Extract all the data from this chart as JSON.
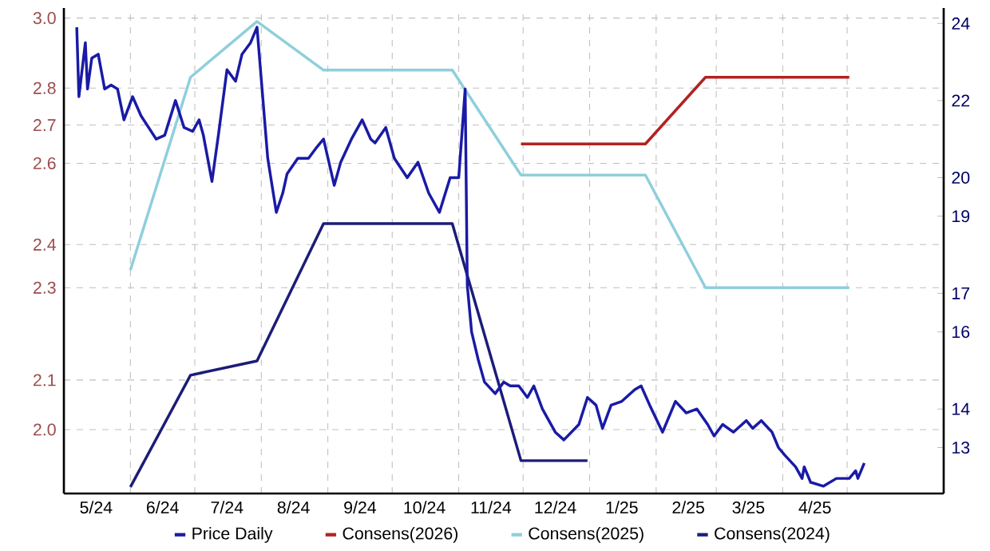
{
  "chart_data": {
    "type": "line",
    "legend": "bottom",
    "grid": true,
    "log": "y",
    "xlim": [
      "2024-05-01",
      "2025-06-15"
    ],
    "xticks": [
      {
        "value": "2024-05-16",
        "label": "5/24"
      },
      {
        "value": "2024-06-16",
        "label": "6/24"
      },
      {
        "value": "2024-07-16",
        "label": "7/24"
      },
      {
        "value": "2024-08-16",
        "label": "8/24"
      },
      {
        "value": "2024-09-16",
        "label": "9/24"
      },
      {
        "value": "2024-10-16",
        "label": "10/24"
      },
      {
        "value": "2024-11-16",
        "label": "11/24"
      },
      {
        "value": "2024-12-16",
        "label": "12/24"
      },
      {
        "value": "2025-01-16",
        "label": "1/25"
      },
      {
        "value": "2025-02-16",
        "label": "2/25"
      },
      {
        "value": "2025-03-16",
        "label": "3/25"
      },
      {
        "value": "2025-04-16",
        "label": "4/25"
      },
      {
        "value": "2024-06-01",
        "label": null
      },
      {
        "value": "2024-07-01",
        "label": null
      },
      {
        "value": "2024-08-01",
        "label": null
      },
      {
        "value": "2024-09-01",
        "label": null
      },
      {
        "value": "2024-10-01",
        "label": null
      },
      {
        "value": "2024-11-01",
        "label": null
      },
      {
        "value": "2024-12-01",
        "label": null
      },
      {
        "value": "2025-01-01",
        "label": null
      },
      {
        "value": "2025-02-01",
        "label": null
      },
      {
        "value": "2025-03-01",
        "label": null
      },
      {
        "value": "2025-04-01",
        "label": null
      },
      {
        "value": "2025-05-01",
        "label": null
      }
    ],
    "ylim": [
      1.878,
      3.03
    ],
    "yticks": [
      {
        "value": 2.0,
        "label": "2.0"
      },
      2.1,
      2.3,
      2.4,
      2.6,
      2.7,
      2.8,
      {
        "value": 3.0,
        "label": "3.0"
      }
    ],
    "y2lim": [
      11.81,
      24.4
    ],
    "y2ticks": [
      13,
      14,
      16,
      17,
      19,
      20,
      22,
      24
    ],
    "series": [
      {
        "name": "Price Daily",
        "color": "#1a1aa6",
        "axis": "y2",
        "x": [
          "2024-05-07",
          "2024-05-08",
          "2024-05-11",
          "2024-05-12",
          "2024-05-14",
          "2024-05-17",
          "2024-05-20",
          "2024-05-23",
          "2024-05-26",
          "2024-05-29",
          "2024-06-02",
          "2024-06-06",
          "2024-06-13",
          "2024-06-17",
          "2024-06-22",
          "2024-06-26",
          "2024-06-30",
          "2024-07-03",
          "2024-07-05",
          "2024-07-09",
          "2024-07-12",
          "2024-07-16",
          "2024-07-20",
          "2024-07-23",
          "2024-07-27",
          "2024-07-30",
          "2024-08-04",
          "2024-08-08",
          "2024-08-11",
          "2024-08-13",
          "2024-08-18",
          "2024-08-23",
          "2024-08-27",
          "2024-08-30",
          "2024-09-04",
          "2024-09-07",
          "2024-09-12",
          "2024-09-17",
          "2024-09-21",
          "2024-09-23",
          "2024-09-28",
          "2024-10-02",
          "2024-10-08",
          "2024-10-13",
          "2024-10-18",
          "2024-10-23",
          "2024-10-28",
          "2024-11-01",
          "2024-11-04",
          "2024-11-05",
          "2024-11-07",
          "2024-11-10",
          "2024-11-13",
          "2024-11-18",
          "2024-11-22",
          "2024-11-25",
          "2024-11-29",
          "2024-12-03",
          "2024-12-06",
          "2024-12-10",
          "2024-12-16",
          "2024-12-20",
          "2024-12-27",
          "2024-12-31",
          "2025-01-04",
          "2025-01-07",
          "2025-01-11",
          "2025-01-16",
          "2025-01-22",
          "2025-01-25",
          "2025-01-29",
          "2025-02-04",
          "2025-02-10",
          "2025-02-15",
          "2025-02-20",
          "2025-02-25",
          "2025-02-28",
          "2025-03-04",
          "2025-03-09",
          "2025-03-15",
          "2025-03-18",
          "2025-03-22",
          "2025-03-27",
          "2025-03-30",
          "2025-04-02",
          "2025-04-07",
          "2025-04-10",
          "2025-04-11",
          "2025-04-14",
          "2025-04-20",
          "2025-04-26",
          "2025-05-02",
          "2025-05-05",
          "2025-05-06",
          "2025-05-09"
        ],
        "values": [
          23.9,
          22.1,
          23.5,
          22.3,
          23.1,
          23.2,
          22.3,
          22.4,
          22.3,
          21.5,
          22.1,
          21.6,
          21.0,
          21.1,
          22.0,
          21.3,
          21.2,
          21.5,
          21.1,
          19.9,
          21.1,
          22.8,
          22.5,
          23.2,
          23.5,
          23.9,
          20.5,
          19.1,
          19.6,
          20.1,
          20.5,
          20.5,
          20.8,
          21.0,
          19.8,
          20.4,
          21.0,
          21.5,
          21.0,
          20.9,
          21.3,
          20.5,
          20.0,
          20.4,
          19.6,
          19.1,
          20.0,
          20.0,
          22.3,
          17.2,
          16.0,
          15.3,
          14.7,
          14.4,
          14.7,
          14.6,
          14.6,
          14.3,
          14.6,
          14.0,
          13.4,
          13.2,
          13.6,
          14.3,
          14.1,
          13.5,
          14.1,
          14.2,
          14.5,
          14.6,
          14.1,
          13.4,
          14.2,
          13.9,
          14.0,
          13.6,
          13.3,
          13.6,
          13.4,
          13.7,
          13.5,
          13.7,
          13.4,
          13.0,
          12.8,
          12.5,
          12.2,
          12.5,
          12.1,
          12.0,
          12.2,
          12.2,
          12.4,
          12.2,
          12.6
        ]
      },
      {
        "name": "Consens(2026)",
        "color": "#b22222",
        "x": [
          "2024-11-30",
          "2025-01-27",
          "2025-02-24",
          "2025-05-02"
        ],
        "values": [
          2.65,
          2.65,
          2.83,
          2.83
        ]
      },
      {
        "name": "Consens(2025)",
        "color": "#8ecfdc",
        "x": [
          "2024-06-01",
          "2024-06-29",
          "2024-07-30",
          "2024-08-30",
          "2024-10-29",
          "2024-11-30",
          "2025-01-27",
          "2025-02-24",
          "2025-05-02"
        ],
        "values": [
          2.34,
          2.83,
          2.99,
          2.85,
          2.85,
          2.57,
          2.57,
          2.3,
          2.3
        ]
      },
      {
        "name": "Consens(2024)",
        "color": "#1c1c78",
        "x": [
          "2024-06-01",
          "2024-06-29",
          "2024-07-30",
          "2024-08-30",
          "2024-10-29",
          "2024-11-30",
          "2024-12-31"
        ],
        "values": [
          1.89,
          2.11,
          2.14,
          2.45,
          2.45,
          1.94,
          1.94
        ]
      }
    ]
  }
}
